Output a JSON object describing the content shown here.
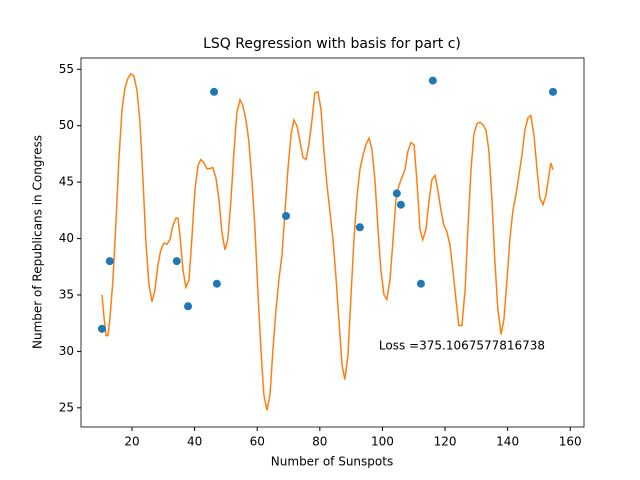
{
  "chart_data": {
    "type": "scatter",
    "title": "LSQ Regression with basis for part c)",
    "x_label": "Number of Sunspots",
    "y_label": "Number of Republicans in Congress",
    "annotation": "Loss =375.1067577816738",
    "xlim": [
      3.7,
      164.4
    ],
    "xticks": [
      20,
      40,
      60,
      80,
      100,
      120,
      140,
      160
    ],
    "ylim": [
      23.3,
      56.0
    ],
    "yticks": [
      25,
      30,
      35,
      40,
      45,
      50,
      55
    ],
    "grid": false,
    "series": [
      {
        "type": "scatter",
        "color": "#1f77b4",
        "x": [
          10.4,
          12.9,
          34.3,
          37.9,
          46.2,
          47.1,
          69.2,
          92.8,
          104.6,
          105.9,
          112.3,
          116.1,
          154.5
        ],
        "values": [
          32,
          38,
          38,
          34,
          53,
          36,
          42,
          41,
          44,
          43,
          36,
          54,
          53
        ]
      },
      {
        "type": "line",
        "color": "#ff7f0e",
        "x": [
          10.4,
          11.0,
          11.7,
          12.3,
          12.9,
          13.9,
          14.9,
          15.8,
          16.8,
          17.7,
          18.7,
          19.6,
          20.6,
          21.6,
          22.5,
          23.5,
          24.4,
          25.4,
          26.4,
          27.3,
          28.3,
          29.2,
          30.2,
          31.2,
          32.1,
          33.1,
          34.0,
          34.7,
          35.3,
          36.3,
          37.2,
          38.2,
          39.1,
          40.1,
          41.1,
          42.0,
          43.0,
          43.9,
          44.9,
          45.8,
          46.8,
          47.8,
          48.7,
          49.7,
          50.6,
          51.6,
          52.6,
          53.5,
          54.5,
          55.4,
          56.4,
          57.3,
          58.3,
          59.3,
          60.2,
          61.2,
          62.1,
          63.1,
          64.1,
          65.0,
          66.0,
          66.9,
          67.9,
          68.8,
          69.8,
          70.8,
          71.7,
          72.7,
          73.6,
          74.6,
          75.6,
          76.5,
          77.5,
          78.4,
          79.4,
          80.4,
          81.3,
          82.3,
          83.2,
          84.2,
          85.1,
          86.1,
          87.1,
          88.0,
          89.0,
          89.9,
          90.9,
          91.9,
          92.8,
          93.8,
          94.7,
          95.7,
          96.6,
          97.6,
          98.6,
          99.5,
          100.5,
          101.4,
          102.4,
          103.4,
          104.3,
          105.3,
          106.2,
          107.2,
          108.1,
          109.1,
          110.1,
          111.0,
          112.0,
          112.9,
          113.9,
          114.9,
          115.8,
          116.8,
          117.7,
          118.7,
          119.6,
          120.6,
          121.6,
          122.5,
          123.5,
          124.4,
          125.4,
          126.4,
          127.3,
          128.3,
          129.2,
          130.2,
          131.2,
          132.1,
          133.1,
          134.0,
          135.0,
          135.9,
          136.9,
          137.9,
          138.8,
          139.8,
          140.7,
          141.7,
          142.6,
          143.6,
          144.6,
          145.5,
          146.5,
          147.4,
          148.4,
          149.4,
          150.3,
          151.3,
          152.2,
          153.2,
          153.8,
          154.5
        ],
        "values": [
          35.0,
          33.2,
          31.4,
          31.4,
          32.8,
          36.3,
          41.6,
          47.0,
          51.4,
          53.3,
          54.2,
          54.6,
          54.4,
          53.1,
          50.5,
          45.2,
          39.9,
          35.9,
          34.4,
          35.4,
          37.7,
          39.0,
          39.6,
          39.5,
          39.9,
          41.2,
          41.8,
          41.8,
          40.3,
          37.2,
          35.7,
          36.3,
          39.9,
          44.3,
          46.5,
          47.0,
          46.7,
          46.2,
          46.2,
          46.3,
          45.4,
          43.4,
          40.6,
          39.0,
          39.9,
          43.4,
          47.8,
          51.2,
          52.3,
          51.8,
          50.5,
          48.7,
          45.2,
          40.8,
          35.4,
          30.1,
          26.2,
          24.8,
          26.2,
          30.1,
          33.7,
          36.3,
          38.5,
          42.1,
          46.1,
          49.2,
          50.5,
          50.0,
          48.7,
          47.2,
          47.0,
          48.3,
          50.5,
          52.9,
          53.0,
          51.4,
          47.8,
          44.7,
          42.5,
          39.9,
          36.8,
          32.8,
          28.8,
          27.5,
          29.7,
          34.6,
          39.9,
          43.8,
          46.1,
          47.4,
          48.3,
          48.9,
          48.0,
          45.2,
          40.8,
          37.2,
          35.0,
          34.6,
          36.3,
          39.9,
          43.4,
          44.7,
          45.4,
          46.1,
          47.7,
          48.5,
          48.3,
          45.2,
          40.8,
          39.9,
          40.8,
          43.4,
          45.2,
          45.6,
          44.3,
          42.5,
          41.2,
          40.6,
          39.4,
          37.2,
          34.6,
          32.3,
          32.3,
          35.4,
          40.8,
          46.1,
          49.2,
          50.2,
          50.3,
          50.1,
          49.6,
          47.8,
          43.4,
          38.1,
          33.7,
          31.5,
          32.8,
          36.3,
          39.9,
          42.5,
          43.8,
          45.6,
          47.4,
          49.6,
          50.7,
          50.9,
          49.2,
          46.1,
          43.6,
          43.0,
          43.8,
          45.6,
          46.7,
          46.1
        ]
      }
    ]
  }
}
